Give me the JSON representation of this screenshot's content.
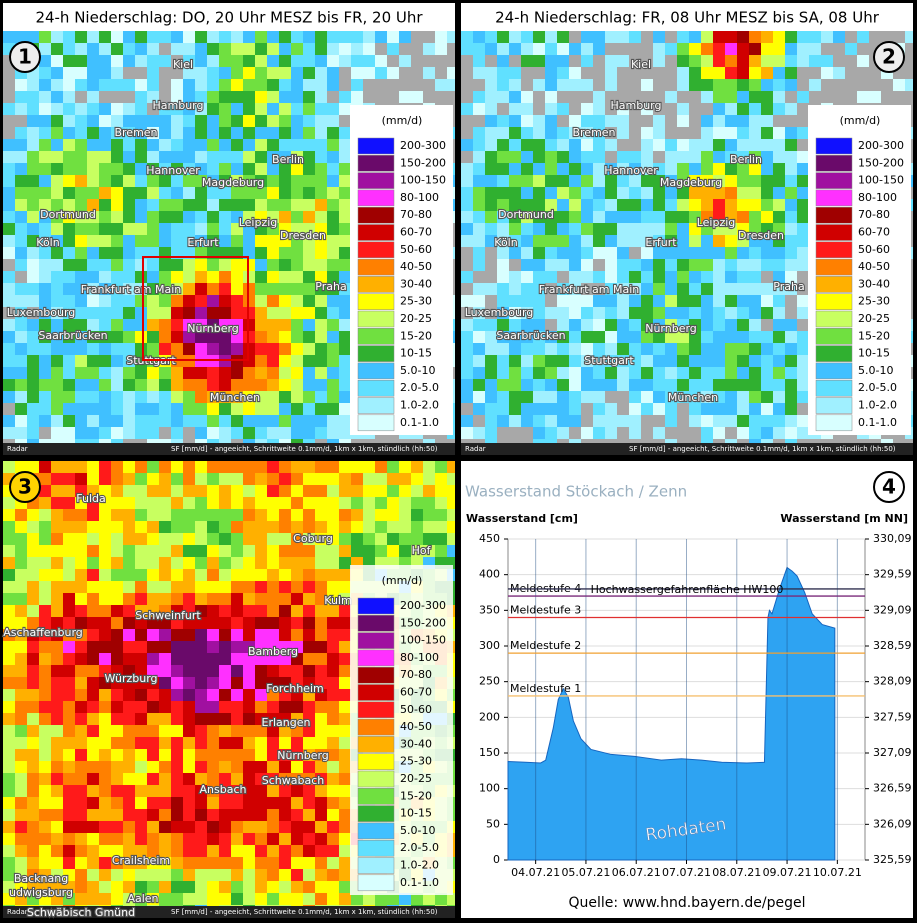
{
  "panels": [
    {
      "title": "24-h Niederschlag: DO, 20 Uhr MESZ bis FR, 20 Uhr",
      "badge": "1",
      "cities": [
        "Kiel",
        "Hamburg",
        "Bremen",
        "Hannover",
        "Berlin",
        "Magdeburg",
        "Dortmund",
        "Leipzig",
        "Köln",
        "Erfurt",
        "Dresden",
        "Frankfurt am Main",
        "Praha",
        "Luxembourg",
        "Saarbrücken",
        "Nürnberg",
        "Stuttgart",
        "München"
      ]
    },
    {
      "title": "24-h Niederschlag: FR, 08 Uhr MESZ bis SA, 08 Uhr",
      "badge": "2",
      "cities": [
        "Kiel",
        "Hamburg",
        "Bremen",
        "Hannover",
        "Berlin",
        "Magdeburg",
        "Dortmund",
        "Leipzig",
        "Köln",
        "Erfurt",
        "Dresden",
        "Frankfurt am Main",
        "Praha",
        "Luxembourg",
        "Saarbrücken",
        "Nürnberg",
        "Stuttgart",
        "München"
      ]
    },
    {
      "badge": "3",
      "cities": [
        "Fulda",
        "Hof",
        "Coburg",
        "Kulm",
        "Schweinfurt",
        "Aschaffenburg",
        "Bamberg",
        "Würzburg",
        "Forchheim",
        "Erlangen",
        "Nürnberg",
        "Schwabach",
        "Ansbach",
        "Crailsheim",
        "Backnang",
        "udwigsburg",
        "Aalen",
        "Schwäbisch Gmünd"
      ]
    }
  ],
  "legend": {
    "unit": "(mm/d)",
    "items": [
      {
        "label": "200-300",
        "color": "#1010ff"
      },
      {
        "label": "150-200",
        "color": "#6a0a6a"
      },
      {
        "label": "100-150",
        "color": "#a010a0"
      },
      {
        "label": "80-100",
        "color": "#ff30ff"
      },
      {
        "label": "70-80",
        "color": "#a00000"
      },
      {
        "label": "60-70",
        "color": "#d00000"
      },
      {
        "label": "50-60",
        "color": "#ff1a1a"
      },
      {
        "label": "40-50",
        "color": "#ff8000"
      },
      {
        "label": "30-40",
        "color": "#ffb000"
      },
      {
        "label": "25-30",
        "color": "#ffff00"
      },
      {
        "label": "20-25",
        "color": "#c8ff60"
      },
      {
        "label": "15-20",
        "color": "#70e040"
      },
      {
        "label": "10-15",
        "color": "#30b030"
      },
      {
        "label": "5.0-10",
        "color": "#40c0ff"
      },
      {
        "label": "2.0-5.0",
        "color": "#60e0ff"
      },
      {
        "label": "1.0-2.0",
        "color": "#a0f0ff"
      },
      {
        "label": "0.1-1.0",
        "color": "#d8ffff"
      }
    ]
  },
  "footer": {
    "source": "Radar",
    "text": "SF [mm/d] - angeeicht, Schrittweite 0.1mm/d, 1km x 1km, stündlich (hh:50)"
  },
  "chart_data": {
    "type": "area",
    "badge": "4",
    "title": "Wasserstand Stöckach / Zenn",
    "ylabel": "Wasserstand [cm]",
    "y2label": "Wasserstand [m NN]",
    "color": "#2ea3f2",
    "x": [
      -0.55,
      -0.2,
      0.1,
      0.2,
      0.35,
      0.45,
      0.55,
      0.65,
      0.75,
      0.9,
      1.1,
      1.5,
      2.0,
      2.5,
      2.9,
      3.3,
      3.7,
      4.2,
      4.55,
      4.62,
      4.65,
      4.7,
      4.85,
      4.95,
      5.0,
      5.1,
      5.2,
      5.35,
      5.5,
      5.7,
      5.95
    ],
    "values": [
      138,
      137,
      136,
      140,
      185,
      225,
      240,
      228,
      195,
      170,
      155,
      148,
      145,
      140,
      142,
      140,
      137,
      136,
      137,
      340,
      350,
      345,
      380,
      400,
      410,
      405,
      398,
      375,
      345,
      330,
      325
    ],
    "xlim": [
      -0.55,
      6.55
    ],
    "xticks": [
      {
        "value": 0,
        "label": "04.07.21"
      },
      {
        "value": 1,
        "label": "05.07.21"
      },
      {
        "value": 2,
        "label": "06.07.21"
      },
      {
        "value": 3,
        "label": "07.07.21"
      },
      {
        "value": 4,
        "label": "08.07.21"
      },
      {
        "value": 5,
        "label": "09.07.21"
      },
      {
        "value": 6,
        "label": "10.07.21"
      }
    ],
    "ylim": [
      0,
      450
    ],
    "yticks": [
      0,
      50,
      100,
      150,
      200,
      250,
      300,
      350,
      400,
      450
    ],
    "y2lim": [
      325.59,
      330.09
    ],
    "y2ticks": [
      {
        "value": 325.59,
        "label": "325,59"
      },
      {
        "value": 326.09,
        "label": "326,09"
      },
      {
        "value": 326.59,
        "label": "326,59"
      },
      {
        "value": 327.09,
        "label": "327,09"
      },
      {
        "value": 327.59,
        "label": "327,59"
      },
      {
        "value": 328.09,
        "label": "328,09"
      },
      {
        "value": 328.59,
        "label": "328,59"
      },
      {
        "value": 329.09,
        "label": "329,09"
      },
      {
        "value": 329.59,
        "label": "329,59"
      },
      {
        "value": 330.09,
        "label": "330,09"
      }
    ],
    "grid": true,
    "annotations": [
      {
        "label": "Meldestufe 1",
        "value": 230,
        "color": "#f5c070"
      },
      {
        "label": "Meldestufe 2",
        "value": 290,
        "color": "#f0a030"
      },
      {
        "label": "Meldestufe 3",
        "value": 340,
        "color": "#e03030"
      },
      {
        "label": "Meldestufe 4",
        "value": 370,
        "color": "#7a2a7a"
      },
      {
        "label": "Hochwassergefahrenfläche HW100",
        "value": 380,
        "color": "#303050"
      }
    ],
    "watermark": "Rohdaten",
    "source": "Quelle: www.hnd.bayern.de/pegel"
  }
}
